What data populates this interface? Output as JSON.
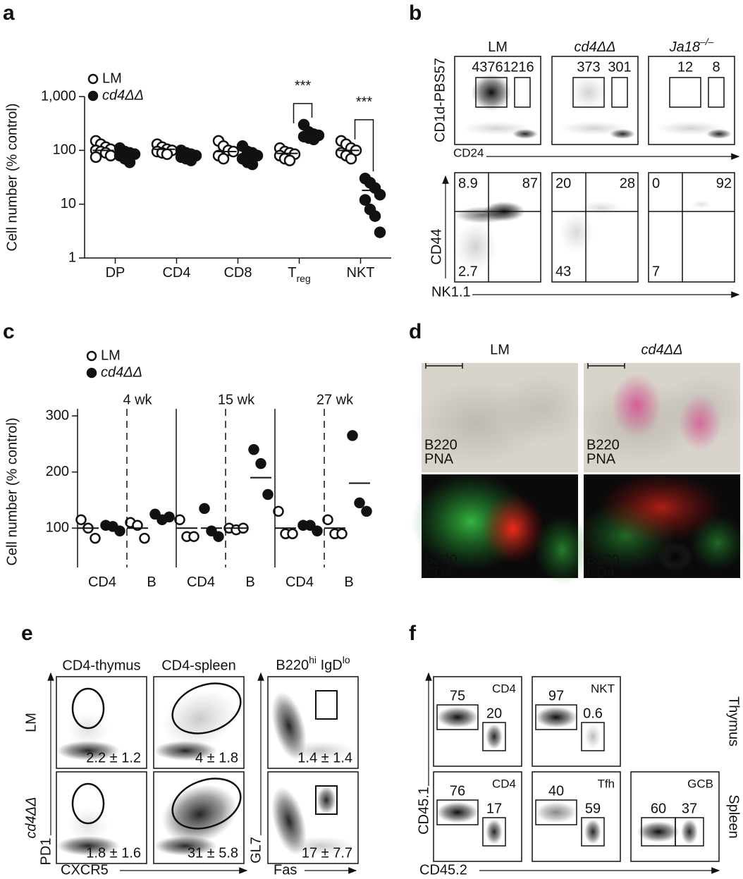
{
  "panel_labels": [
    "a",
    "b",
    "c",
    "d",
    "e",
    "f"
  ],
  "chart_data": [
    {
      "type": "dot",
      "y_label": "Cell number (% control)",
      "categories": [
        "DP",
        "CD4",
        "CD8",
        "T",
        "NKT"
      ],
      "category_subscripts": [
        null,
        null,
        null,
        "reg",
        null
      ],
      "significance_labels": [
        null,
        null,
        null,
        "***",
        "***"
      ],
      "yscale": "log",
      "ylim": [
        1,
        1000
      ],
      "yticks": [
        {
          "value": 1000,
          "label": "1,000"
        },
        100,
        10,
        1
      ],
      "series": [
        {
          "name": "LM",
          "color": "#ffffff",
          "italic": false,
          "values": [
            [
              150,
              130,
              115,
              105,
              100,
              95,
              90,
              80,
              75
            ],
            [
              130,
              115,
              105,
              100,
              95,
              90,
              85
            ],
            [
              150,
              120,
              100,
              95,
              80,
              70
            ],
            [
              110,
              95,
              90,
              85,
              80,
              70,
              65
            ],
            [
              150,
              130,
              110,
              100,
              90,
              80,
              70
            ]
          ],
          "means": [
            100,
            105,
            95,
            88,
            100
          ]
        },
        {
          "name": "cd4ΔΔ",
          "color": "#111111",
          "italic": true,
          "values": [
            [
              110,
              95,
              90,
              85,
              80,
              70,
              60
            ],
            [
              100,
              90,
              85,
              80,
              75,
              70,
              65
            ],
            [
              120,
              95,
              90,
              80,
              70,
              60,
              55
            ],
            [
              300,
              220,
              200,
              190,
              180,
              170,
              160
            ],
            [
              30,
              25,
              20,
              15,
              12,
              8,
              6,
              3
            ]
          ],
          "means": [
            88,
            85,
            85,
            190,
            18
          ]
        }
      ]
    },
    {
      "type": "dot",
      "y_label": "Cell number (% control)",
      "categories": [
        "CD4",
        "B",
        "CD4",
        "B",
        "CD4",
        "B"
      ],
      "groups": [
        "4 wk",
        "15 wk",
        "27 wk"
      ],
      "ylim": [
        30,
        300
      ],
      "yticks": [
        100,
        200,
        300
      ],
      "series": [
        {
          "name": "LM",
          "color": "#ffffff",
          "italic": false,
          "values": [
            [
              115,
              100,
              82
            ],
            [
              110,
              105,
              82
            ],
            [
              115,
              85,
              85
            ],
            [
              100,
              97,
              100
            ],
            [
              130,
              90,
              90
            ],
            [
              115,
              90,
              90
            ]
          ],
          "means": [
            100,
            100,
            100,
            100,
            100,
            100
          ]
        },
        {
          "name": "cd4ΔΔ",
          "color": "#111111",
          "italic": true,
          "values": [
            [
              105,
              103,
              95
            ],
            [
              125,
              115,
              120
            ],
            [
              135,
              95,
              85
            ],
            [
              240,
              215,
              160
            ],
            [
              105,
              105,
              95
            ],
            [
              265,
              145,
              130
            ]
          ],
          "means": [
            100,
            118,
            100,
            190,
            100,
            180
          ]
        }
      ]
    }
  ],
  "panel_b": {
    "y_label": "CD1d-PBS57",
    "x_label": "CD24",
    "columns": [
      {
        "text": "LM"
      },
      {
        "text": "cd4ΔΔ"
      },
      {
        "text": "Ja18",
        "sup": "–/–"
      }
    ],
    "gates": [
      [
        "43761",
        "216"
      ],
      [
        "373",
        "301"
      ],
      [
        "12",
        "8"
      ]
    ],
    "y2_label": "CD44",
    "x2_label": "NK1.1",
    "quadrants": [
      {
        "top_left": "8.9",
        "top_right": "87",
        "bottom_left": "2.7"
      },
      {
        "top_left": "20",
        "top_right": "28",
        "bottom_left": "43"
      },
      {
        "top_left": "0",
        "top_right": "92",
        "bottom_left": "7"
      }
    ]
  },
  "panel_d": {
    "columns": [
      "LM",
      "cd4ΔΔ"
    ],
    "top_stains": [
      "B220",
      "PNA"
    ],
    "bottom_stains": [
      "B220",
      "CD4"
    ]
  },
  "panel_e": {
    "columns": [
      "CD4-thymus",
      "CD4-spleen"
    ],
    "column3": [
      "B220",
      "hi",
      " IgD",
      "lo"
    ],
    "rows": [
      "LM",
      "cd4ΔΔ"
    ],
    "x_label": "CXCR5",
    "y_label": "PD1",
    "x2_label": "Fas",
    "y2_label": "GL7",
    "stats": [
      [
        "2.2 ± 1.2",
        "4 ± 1.8",
        "1.4 ± 1.4"
      ],
      [
        "1.8 ± 1.6",
        "31 ± 5.8",
        "17 ± 7.7"
      ]
    ]
  },
  "panel_f": {
    "rows": [
      "Thymus",
      "Spleen"
    ],
    "x_label": "CD45.2",
    "y_label": "CD45.1",
    "plots": [
      [
        {
          "title": "CD4",
          "gates": [
            "75",
            "20"
          ]
        },
        {
          "title": "NKT",
          "gates": [
            "97",
            "0.6"
          ]
        }
      ],
      [
        {
          "title": "CD4",
          "gates": [
            "76",
            "17"
          ]
        },
        {
          "title": "Tfh",
          "gates": [
            "40",
            "59"
          ]
        },
        {
          "title": "GCB",
          "gates": [
            "60",
            "37"
          ]
        }
      ]
    ]
  }
}
